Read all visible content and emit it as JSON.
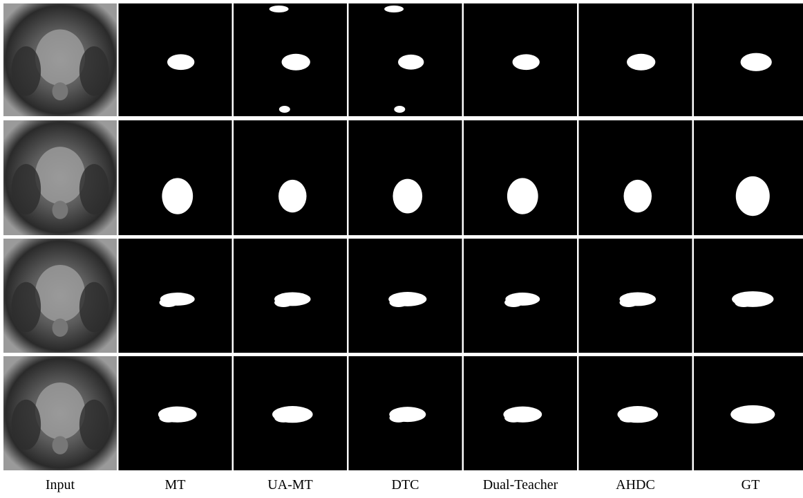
{
  "columns": [
    "Input",
    "MT",
    "UA-MT",
    "DTC",
    "Dual-Teacher",
    "AHDC",
    "GT"
  ]
}
